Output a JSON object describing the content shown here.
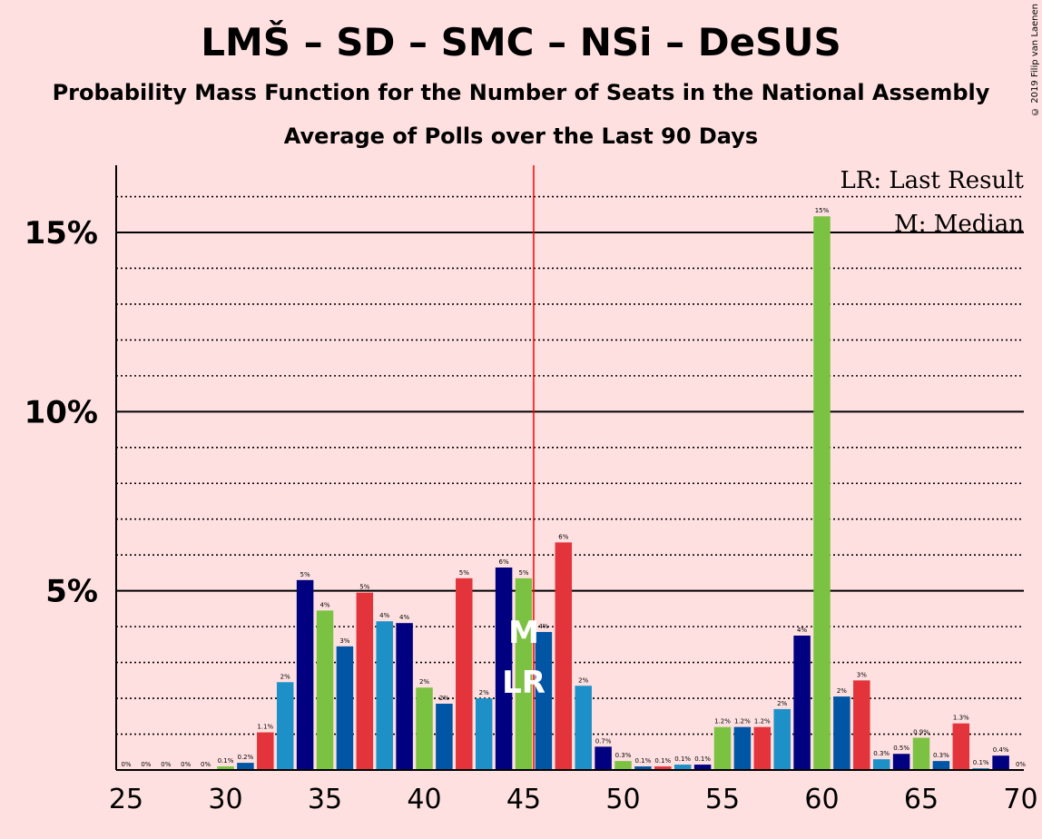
{
  "title": "LMŠ – SD – SMC – NSi – DeSUS",
  "subtitle": "Probability Mass Function for the Number of Seats in the National Assembly",
  "subtitle2": "Average of Polls over the Last 90 Days",
  "copyright": "© 2019 Filip van Laenen",
  "legend": {
    "lr": "LR: Last Result",
    "m": "M: Median"
  },
  "markers": {
    "median": "M",
    "last_result": "LR"
  },
  "chart_data": {
    "type": "bar",
    "x": [
      25,
      26,
      27,
      28,
      29,
      30,
      31,
      32,
      33,
      34,
      35,
      36,
      37,
      38,
      39,
      40,
      41,
      42,
      43,
      44,
      45,
      46,
      47,
      48,
      49,
      50,
      51,
      52,
      53,
      54,
      55,
      56,
      57,
      58,
      59,
      60,
      61,
      62,
      63,
      64,
      65,
      66,
      67,
      68,
      69,
      70
    ],
    "values": [
      0,
      0,
      0,
      0,
      0,
      0.1,
      0.2,
      1.05,
      2.45,
      5.3,
      4.45,
      3.45,
      4.95,
      4.15,
      4.1,
      2.3,
      1.85,
      5.35,
      2.0,
      5.65,
      5.35,
      3.85,
      6.35,
      2.35,
      0.65,
      0.25,
      0.1,
      0.1,
      0.15,
      0.15,
      1.2,
      1.2,
      1.2,
      1.7,
      3.75,
      15.45,
      2.05,
      2.5,
      0.3,
      0.45,
      0.9,
      0.25,
      1.3,
      0.05,
      0.4,
      0
    ],
    "labels": [
      "0%",
      "0%",
      "0%",
      "0%",
      "0%",
      "0.1%",
      "0.2%",
      "1.1%",
      "2%",
      "5%",
      "4%",
      "3%",
      "5%",
      "4%",
      "4%",
      "2%",
      "2%",
      "5%",
      "2%",
      "6%",
      "5%",
      "4%",
      "6%",
      "2%",
      "0.7%",
      "0.3%",
      "0.1%",
      "0.1%",
      "0.1%",
      "0.1%",
      "1.2%",
      "1.2%",
      "1.2%",
      "2%",
      "4%",
      "15%",
      "2%",
      "3%",
      "0.3%",
      "0.5%",
      "0.9%",
      "0.3%",
      "1.3%",
      "0.1%",
      "0.4%",
      "0%"
    ],
    "bar_colors": [
      "#7cc242",
      "#0055a4",
      "#e3343b",
      "#1e90c8",
      "#000080"
    ],
    "xticks": [
      "25",
      "30",
      "35",
      "40",
      "45",
      "50",
      "55",
      "60",
      "65",
      "70"
    ],
    "yticks": [
      "5%",
      "10%",
      "15%"
    ],
    "ylim": [
      0,
      16.9
    ],
    "xlim": [
      24.5,
      70.5
    ],
    "majorGrid": [
      5,
      10,
      15
    ],
    "minorGrid": [
      1,
      2,
      3,
      4,
      6,
      7,
      8,
      9,
      11,
      12,
      13,
      14,
      16
    ],
    "median": 45,
    "last_result": 45,
    "majority_line": 45.5,
    "colors": {
      "majority_line": "#ff0000",
      "axis": "#000000",
      "background": "#ffe0e0"
    }
  }
}
